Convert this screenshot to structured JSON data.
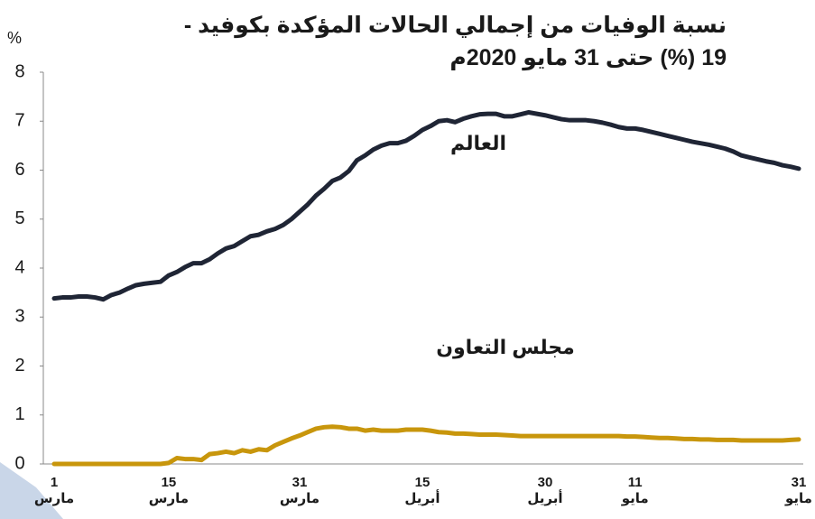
{
  "chart_data": {
    "type": "line",
    "title": [
      "نسبة الوفيات من إجمالي الحالات المؤكدة بكوفيد -",
      "19 (%) حتى 31 مايو 2020م"
    ],
    "y_label": "%",
    "annotations": [
      "العالم",
      "مجلس التعاون"
    ],
    "categories": [
      "1\nمارس",
      null,
      null,
      null,
      null,
      null,
      null,
      null,
      null,
      null,
      null,
      null,
      null,
      null,
      "15\nمارس",
      null,
      null,
      null,
      null,
      null,
      null,
      null,
      null,
      null,
      null,
      null,
      null,
      null,
      null,
      null,
      "31\nمارس",
      null,
      null,
      null,
      null,
      null,
      null,
      null,
      null,
      null,
      null,
      null,
      null,
      null,
      null,
      "15\nأبريل",
      null,
      null,
      null,
      null,
      null,
      null,
      null,
      null,
      null,
      null,
      null,
      null,
      null,
      null,
      "30\nأبريل",
      null,
      null,
      null,
      null,
      null,
      null,
      null,
      null,
      null,
      null,
      "11\nمايو",
      null,
      null,
      null,
      null,
      null,
      null,
      null,
      null,
      null,
      null,
      null,
      null,
      null,
      null,
      null,
      null,
      null,
      null,
      null,
      "31\nمايو"
    ],
    "series": [
      {
        "name": "العالم",
        "color": "#1f2535",
        "values": [
          3.38,
          3.4,
          3.4,
          3.42,
          3.42,
          3.4,
          3.36,
          3.45,
          3.5,
          3.58,
          3.65,
          3.68,
          3.7,
          3.72,
          3.85,
          3.92,
          4.02,
          4.1,
          4.1,
          4.18,
          4.3,
          4.4,
          4.45,
          4.55,
          4.65,
          4.68,
          4.75,
          4.8,
          4.88,
          5.0,
          5.15,
          5.3,
          5.48,
          5.62,
          5.78,
          5.85,
          5.98,
          6.2,
          6.3,
          6.42,
          6.5,
          6.55,
          6.55,
          6.6,
          6.7,
          6.82,
          6.9,
          7.0,
          7.02,
          6.98,
          7.05,
          7.1,
          7.14,
          7.15,
          7.15,
          7.1,
          7.1,
          7.14,
          7.18,
          7.15,
          7.12,
          7.08,
          7.04,
          7.02,
          7.02,
          7.02,
          7.0,
          6.97,
          6.93,
          6.88,
          6.85,
          6.85,
          6.82,
          6.78,
          6.74,
          6.7,
          6.66,
          6.62,
          6.58,
          6.55,
          6.52,
          6.48,
          6.44,
          6.38,
          6.3,
          6.26,
          6.22,
          6.18,
          6.15,
          6.1,
          6.07,
          6.03
        ]
      },
      {
        "name": "مجلس التعاون",
        "color": "#c8960c",
        "values": [
          0,
          0,
          0,
          0,
          0,
          0,
          0,
          0,
          0,
          0,
          0,
          0,
          0,
          0,
          0.02,
          0.12,
          0.1,
          0.1,
          0.08,
          0.2,
          0.22,
          0.25,
          0.22,
          0.28,
          0.25,
          0.3,
          0.28,
          0.38,
          0.45,
          0.52,
          0.58,
          0.65,
          0.72,
          0.75,
          0.76,
          0.75,
          0.72,
          0.72,
          0.68,
          0.7,
          0.68,
          0.68,
          0.68,
          0.7,
          0.7,
          0.7,
          0.68,
          0.65,
          0.64,
          0.62,
          0.62,
          0.61,
          0.6,
          0.6,
          0.6,
          0.59,
          0.58,
          0.57,
          0.57,
          0.57,
          0.57,
          0.57,
          0.57,
          0.57,
          0.57,
          0.57,
          0.57,
          0.57,
          0.57,
          0.57,
          0.56,
          0.56,
          0.55,
          0.54,
          0.53,
          0.53,
          0.52,
          0.51,
          0.51,
          0.5,
          0.5,
          0.49,
          0.49,
          0.49,
          0.48,
          0.48,
          0.48,
          0.48,
          0.48,
          0.48,
          0.49,
          0.5
        ]
      }
    ],
    "ylim": [
      0,
      8
    ],
    "yticks": [
      0,
      1,
      2,
      3,
      4,
      5,
      6,
      7,
      8
    ],
    "grid": false
  }
}
